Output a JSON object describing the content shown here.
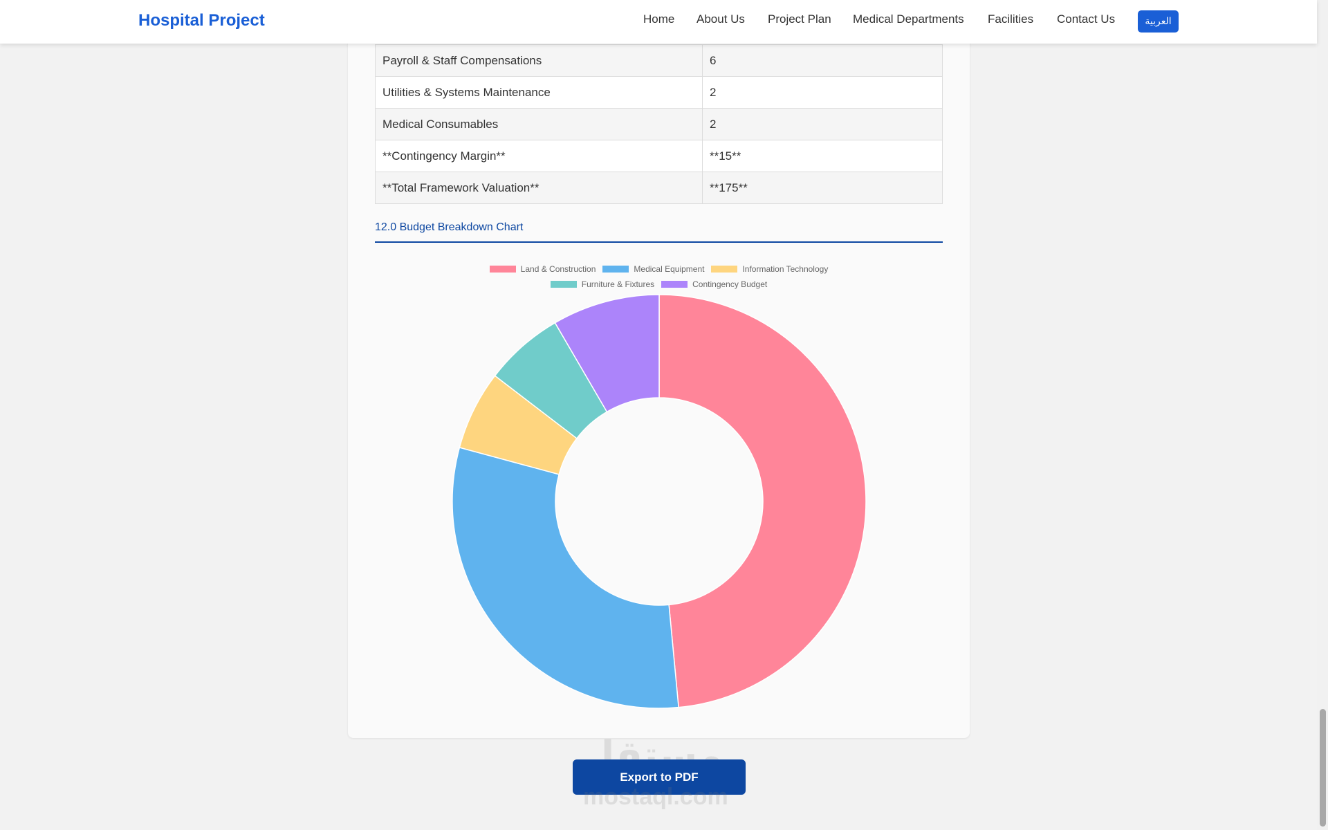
{
  "navbar": {
    "brand": "Hospital Project",
    "links": [
      {
        "label": "Home",
        "name": "nav-home"
      },
      {
        "label": "About Us",
        "name": "nav-about-us"
      },
      {
        "label": "Project Plan",
        "name": "nav-project-plan"
      },
      {
        "label": "Medical Departments",
        "name": "nav-medical-departments"
      },
      {
        "label": "Facilities",
        "name": "nav-facilities"
      },
      {
        "label": "Contact Us",
        "name": "nav-contact-us"
      }
    ],
    "language_button": "العربية"
  },
  "budget_table": {
    "rows": [
      [
        "Payroll & Staff Compensations",
        "6"
      ],
      [
        "Utilities & Systems Maintenance",
        "2"
      ],
      [
        "Medical Consumables",
        "2"
      ],
      [
        "**Contingency Margin**",
        "**15**"
      ],
      [
        "**Total Framework Valuation**",
        "**175**"
      ]
    ]
  },
  "section_title": "12.0 Budget Breakdown Chart",
  "chart_data": {
    "type": "pie",
    "variant": "doughnut",
    "categories": [
      "Land & Construction",
      "Medical Equipment",
      "Information Technology",
      "Furniture & Fixtures",
      "Contingency Budget"
    ],
    "values": [
      48.5,
      30.7,
      6.2,
      6.2,
      8.4
    ],
    "colors": [
      "#ff8599",
      "#5fb3ee",
      "#fed57f",
      "#70ccca",
      "#ac84fa"
    ],
    "legend_position": "top"
  },
  "export_button": "Export to PDF",
  "watermark": {
    "arabic": "مستقل",
    "latin": "mostaql.com"
  }
}
